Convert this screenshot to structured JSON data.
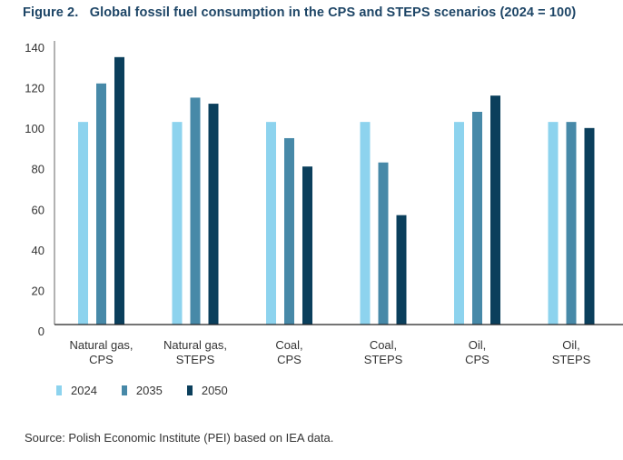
{
  "title": "Figure 2.   Global fossil fuel consumption in the CPS and STEPS scenarios (2024 = 100)",
  "source": "Source: Polish Economic Institute (PEI) based on IEA data.",
  "chart_data": {
    "type": "bar",
    "title": "Global fossil fuel consumption in the CPS and STEPS scenarios (2024 = 100)",
    "xlabel": "",
    "ylabel": "",
    "ylim": [
      0,
      140
    ],
    "yticks": [
      0,
      20,
      40,
      60,
      80,
      100,
      120,
      140
    ],
    "grid": false,
    "legend_position": "bottom-left",
    "categories": [
      [
        "Natural gas,",
        "CPS"
      ],
      [
        "Natural gas,",
        "STEPS"
      ],
      [
        "Coal,",
        "CPS"
      ],
      [
        "Coal,",
        "STEPS"
      ],
      [
        "Oil,",
        "CPS"
      ],
      [
        "Oil,",
        "STEPS"
      ]
    ],
    "series": [
      {
        "name": "2024",
        "color": "#8dd3ee",
        "values": [
          100,
          100,
          100,
          100,
          100,
          100
        ]
      },
      {
        "name": "2035",
        "color": "#4789a8",
        "values": [
          119,
          112,
          92,
          80,
          105,
          100
        ]
      },
      {
        "name": "2050",
        "color": "#0b3f5c",
        "values": [
          132,
          109,
          78,
          54,
          113,
          97
        ]
      }
    ]
  }
}
